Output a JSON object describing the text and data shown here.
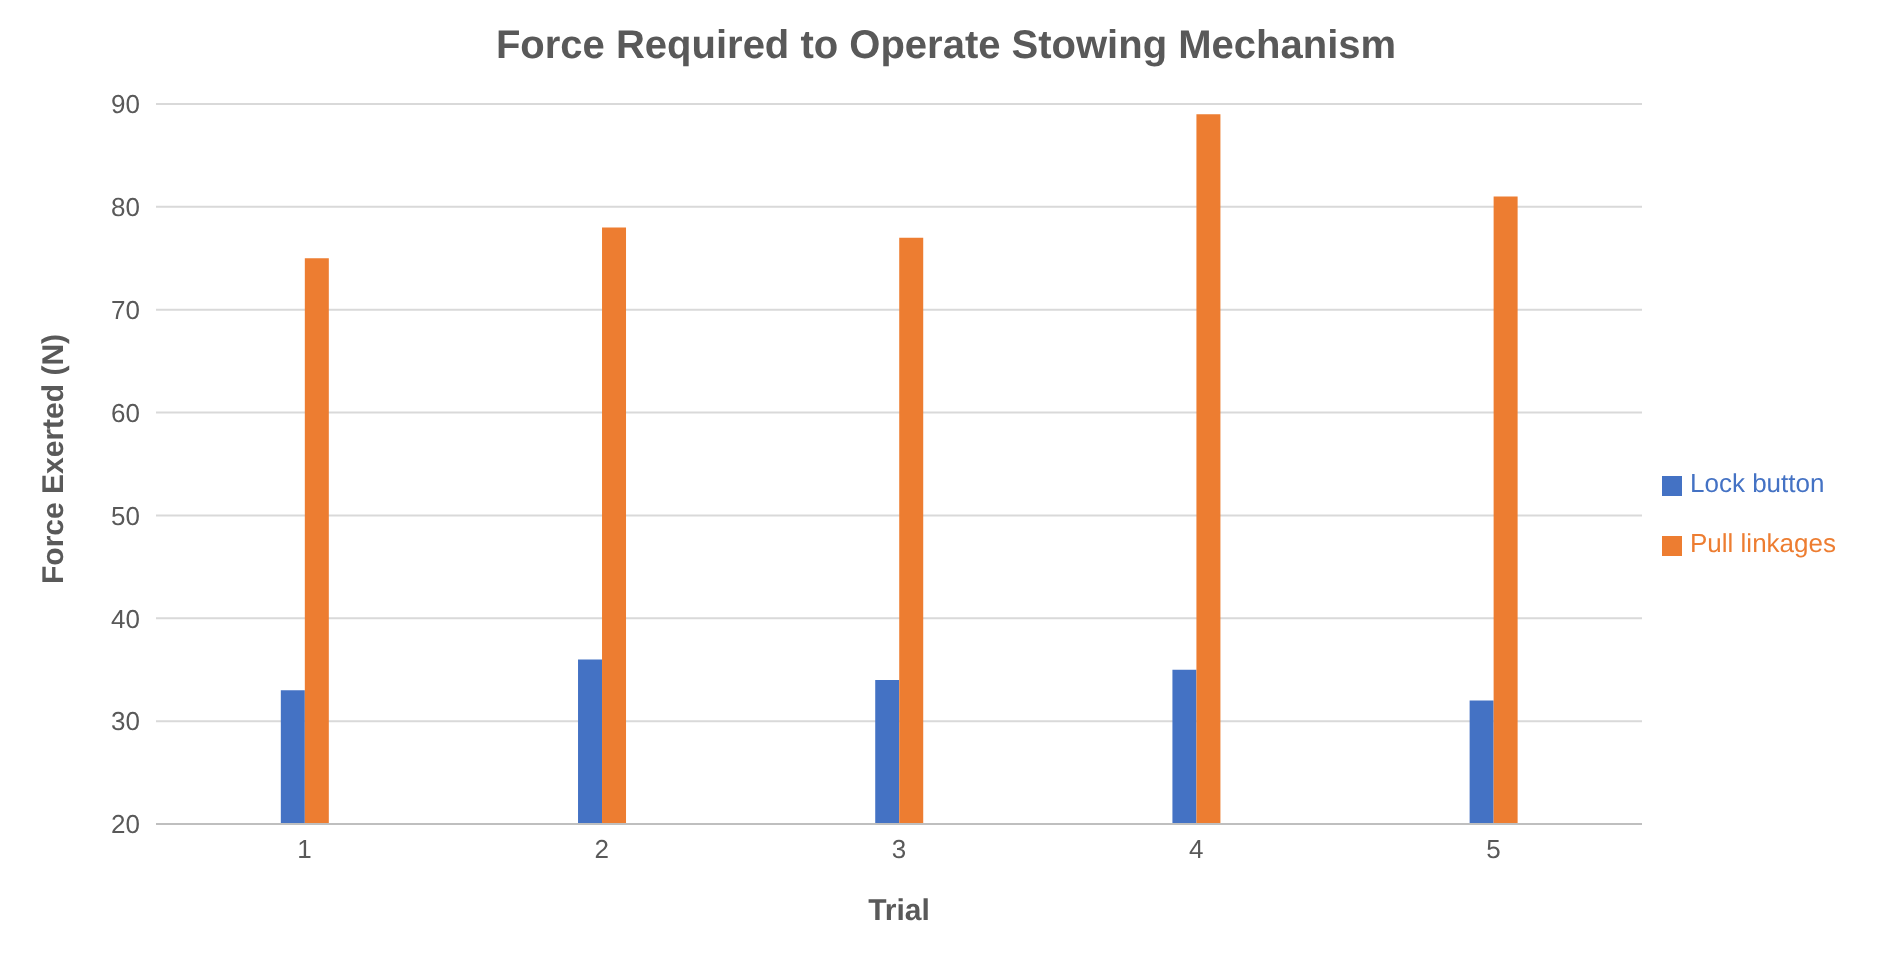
{
  "chart_data": {
    "type": "bar",
    "title": "Force Required to Operate Stowing Mechanism",
    "xlabel": "Trial",
    "ylabel": "Force Exerted (N)",
    "categories": [
      "1",
      "2",
      "3",
      "4",
      "5"
    ],
    "series": [
      {
        "name": "Lock button",
        "color": "#4472c4",
        "values": [
          33,
          36,
          34,
          35,
          32
        ]
      },
      {
        "name": "Pull linkages",
        "color": "#ed7d31",
        "values": [
          75,
          78,
          77,
          89,
          81
        ]
      }
    ],
    "ylim": [
      20,
      90
    ],
    "yticks": [
      20,
      30,
      40,
      50,
      60,
      70,
      80,
      90
    ],
    "grid": "y",
    "legend": "right"
  }
}
